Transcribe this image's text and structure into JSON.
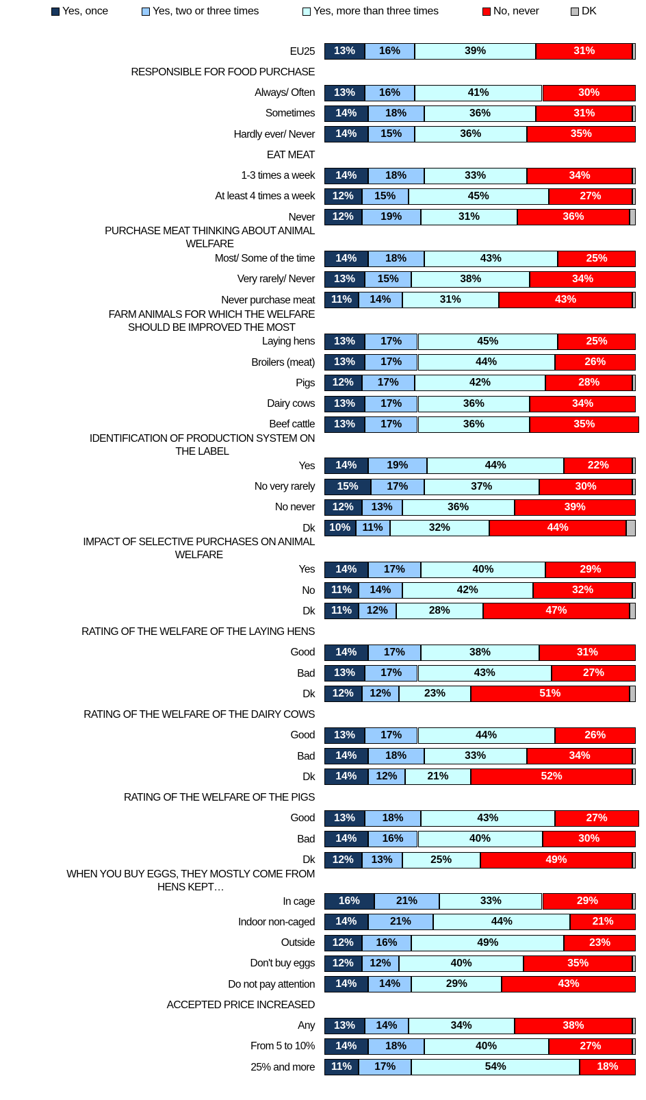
{
  "chart_data": {
    "type": "stacked-bar",
    "categories": [
      "EU25",
      "RESPONSIBLE FOR FOOD PURCHASE",
      "Always/ Often",
      "Sometimes",
      "Hardly ever/ Never",
      "EAT MEAT",
      "1-3 times a week",
      "At least 4 times a week",
      "Never",
      "PURCHASE MEAT THINKING ABOUT ANIMAL\nWELFARE",
      "Most/ Some of the time",
      "Very rarely/ Never",
      "Never purchase meat",
      "FARM ANIMALS FOR WHICH THE WELFARE\nSHOULD BE IMPROVED THE MOST",
      "Laying hens",
      "Broilers (meat)",
      "Pigs",
      "Dairy cows",
      "Beef cattle",
      "IDENTIFICATION OF PRODUCTION SYSTEM ON\nTHE LABEL",
      "Yes",
      "No very rarely",
      "No never",
      "Dk",
      "IMPACT OF SELECTIVE PURCHASES ON ANIMAL\nWELFARE",
      "Yes",
      "No",
      "Dk",
      "RATING OF THE WELFARE OF THE LAYING HENS",
      "Good",
      "Bad",
      "Dk",
      "RATING OF THE WELFARE OF THE DAIRY COWS",
      "Good",
      "Bad",
      "Dk",
      "RATING OF THE WELFARE OF THE PIGS",
      "Good",
      "Bad",
      "Dk",
      "WHEN YOU BUY EGGS, THEY MOSTLY COME FROM\nHENS KEPT…",
      "In cage",
      "Indoor non-caged",
      "Outside",
      "Don't buy eggs",
      "Do not pay attention",
      "ACCEPTED PRICE INCREASED",
      "Any",
      "From 5 to 10%",
      "25% and more"
    ],
    "xlim": [
      0,
      100
    ],
    "series": [
      {
        "name": "Yes, once",
        "color": "#17375e",
        "values": [
          13,
          null,
          13,
          14,
          14,
          null,
          14,
          12,
          12,
          null,
          14,
          13,
          11,
          null,
          13,
          13,
          12,
          13,
          13,
          null,
          14,
          15,
          12,
          10,
          null,
          14,
          11,
          11,
          null,
          14,
          13,
          12,
          null,
          13,
          14,
          14,
          null,
          13,
          14,
          12,
          null,
          16,
          14,
          12,
          12,
          14,
          null,
          13,
          14,
          11
        ],
        "value_labels": [
          "13%",
          null,
          "13%",
          "14%",
          "14%",
          null,
          "14%",
          "12%",
          "12%",
          null,
          "14%",
          "13%",
          "11%",
          null,
          "13%",
          "13%",
          "12%",
          "13%",
          "13%",
          null,
          "14%",
          "15%",
          "12%",
          "10%",
          null,
          "14%",
          "11%",
          "11%",
          null,
          "14%",
          "13%",
          "12%",
          null,
          "13%",
          "14%",
          "14%",
          null,
          "13%",
          "14%",
          "12%",
          null,
          "16%",
          "14%",
          "12%",
          "12%",
          "14%",
          null,
          "13%",
          "14%",
          "11%"
        ]
      },
      {
        "name": "Yes, two or three times",
        "color": "#99ccff",
        "values": [
          16,
          null,
          16,
          18,
          15,
          null,
          18,
          15,
          19,
          null,
          18,
          15,
          14,
          null,
          17,
          17,
          17,
          17,
          17,
          null,
          19,
          17,
          13,
          11,
          null,
          17,
          14,
          12,
          null,
          17,
          17,
          12,
          null,
          17,
          18,
          12,
          null,
          18,
          16,
          13,
          null,
          21,
          21,
          16,
          12,
          14,
          null,
          14,
          18,
          17
        ],
        "value_labels": [
          "16%",
          null,
          "16%",
          "18%",
          "15%",
          null,
          "18%",
          "15%",
          "19%",
          null,
          "18%",
          "15%",
          "14%",
          null,
          "17%",
          "17%",
          "17%",
          "17%",
          "17%",
          null,
          "19%",
          "17%",
          "13%",
          "11%",
          null,
          "17%",
          "14%",
          "12%",
          null,
          "17%",
          "17%",
          "12%",
          null,
          "17%",
          "18%",
          "12%",
          null,
          "18%",
          "16%",
          "13%",
          null,
          "21%",
          "21%",
          "16%",
          "12%",
          "14%",
          null,
          "14%",
          "18%",
          "17%"
        ]
      },
      {
        "name": "Yes, more than three times",
        "color": "#ccffff",
        "values": [
          39,
          null,
          41,
          36,
          36,
          null,
          33,
          45,
          31,
          null,
          43,
          38,
          31,
          null,
          45,
          44,
          42,
          36,
          36,
          null,
          44,
          37,
          36,
          32,
          null,
          40,
          42,
          28,
          null,
          38,
          43,
          23,
          null,
          44,
          33,
          21,
          null,
          43,
          40,
          25,
          null,
          33,
          44,
          49,
          40,
          29,
          null,
          34,
          40,
          54
        ],
        "value_labels": [
          "39%",
          null,
          "41%",
          "36%",
          "36%",
          null,
          "33%",
          "45%",
          "31%",
          null,
          "43%",
          "38%",
          "31%",
          null,
          "45%",
          "44%",
          "42%",
          "36%",
          "36%",
          null,
          "44%",
          "37%",
          "36%",
          "32%",
          null,
          "40%",
          "42%",
          "28%",
          null,
          "38%",
          "43%",
          "23%",
          null,
          "44%",
          "33%",
          "21%",
          null,
          "43%",
          "40%",
          "25%",
          null,
          "33%",
          "44%",
          "49%",
          "40%",
          "29%",
          null,
          "34%",
          "40%",
          "54%"
        ]
      },
      {
        "name": "No, never",
        "color": "#ff0000",
        "values": [
          31,
          null,
          30,
          31,
          35,
          null,
          34,
          27,
          36,
          null,
          25,
          34,
          43,
          null,
          25,
          26,
          28,
          34,
          35,
          null,
          22,
          30,
          39,
          44,
          null,
          29,
          32,
          47,
          null,
          31,
          27,
          51,
          null,
          26,
          34,
          52,
          null,
          27,
          30,
          49,
          null,
          29,
          21,
          23,
          35,
          43,
          null,
          38,
          27,
          18
        ],
        "value_labels": [
          "31%",
          null,
          "30%",
          "31%",
          "35%",
          null,
          "34%",
          "27%",
          "36%",
          null,
          "25%",
          "34%",
          "43%",
          null,
          "25%",
          "26%",
          "28%",
          "34%",
          "35%",
          null,
          "22%",
          "30%",
          "39%",
          "44%",
          null,
          "29%",
          "32%",
          "47%",
          null,
          "31%",
          "27%",
          "51%",
          null,
          "26%",
          "34%",
          "52%",
          null,
          "27%",
          "30%",
          "49%",
          null,
          "29%",
          "21%",
          "23%",
          "35%",
          "43%",
          null,
          "38%",
          "27%",
          "18%"
        ]
      },
      {
        "name": "DK",
        "color": "#c0c0c0",
        "values": [
          1,
          null,
          0,
          1,
          0,
          null,
          1,
          1,
          2,
          null,
          0,
          0,
          1,
          null,
          0,
          0,
          1,
          0,
          0,
          null,
          1,
          1,
          0,
          3,
          null,
          0,
          1,
          2,
          null,
          0,
          0,
          2,
          null,
          0,
          1,
          1,
          null,
          0,
          0,
          1,
          null,
          1,
          0,
          0,
          1,
          0,
          null,
          1,
          1,
          0
        ]
      }
    ]
  }
}
